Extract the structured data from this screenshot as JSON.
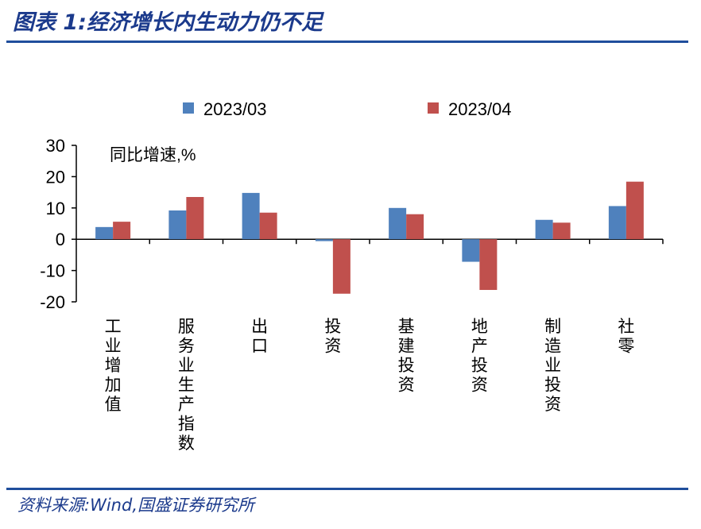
{
  "header": {
    "title": "图表 1:经济增长内生动力仍不足"
  },
  "footer": {
    "source": "资料来源:Wind,国盛证券研究所"
  },
  "colors": {
    "series1": "#4f81bd",
    "series2": "#c0504d",
    "rule": "#1f4e9c",
    "title": "#1b3a8c"
  },
  "chart_data": {
    "type": "bar",
    "title": "",
    "ylabel": "",
    "annotation": "同比增速,%",
    "categories": [
      "工业增加值",
      "服务业生产指数",
      "出口",
      "投资",
      "基建投资",
      "地产投资",
      "制造业投资",
      "社零"
    ],
    "series": [
      {
        "name": "2023/03",
        "values": [
          3.9,
          9.2,
          14.8,
          -0.6,
          10.0,
          -7.2,
          6.2,
          10.6
        ]
      },
      {
        "name": "2023/04",
        "values": [
          5.6,
          13.5,
          8.5,
          -17.4,
          8.0,
          -16.2,
          5.3,
          18.4
        ]
      }
    ],
    "ylim": [
      -20,
      30
    ],
    "yticks": [
      -20,
      -10,
      0,
      10,
      20,
      30
    ],
    "legend": "top"
  }
}
